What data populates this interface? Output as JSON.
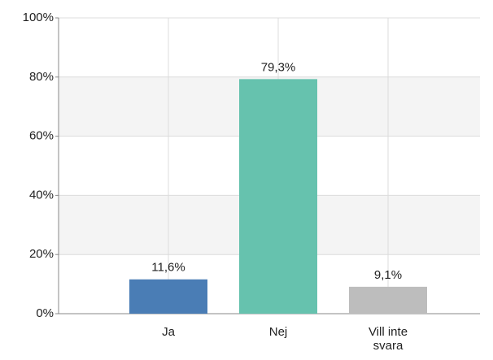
{
  "chart_data": {
    "type": "bar",
    "categories": [
      "Ja",
      "Nej",
      "Vill inte svara"
    ],
    "values": [
      11.6,
      79.3,
      9.1
    ],
    "value_labels": [
      "11,6%",
      "79,3%",
      "9,1%"
    ],
    "colors": [
      "#4a7db5",
      "#66c2ae",
      "#bdbdbd"
    ],
    "ylim": [
      0,
      100
    ],
    "yticks": [
      {
        "value": 0,
        "label": "0%"
      },
      {
        "value": 20,
        "label": "20%"
      },
      {
        "value": 40,
        "label": "40%"
      },
      {
        "value": 60,
        "label": "60%"
      },
      {
        "value": 80,
        "label": "80%"
      },
      {
        "value": 100,
        "label": "100%"
      }
    ],
    "grid": true
  }
}
